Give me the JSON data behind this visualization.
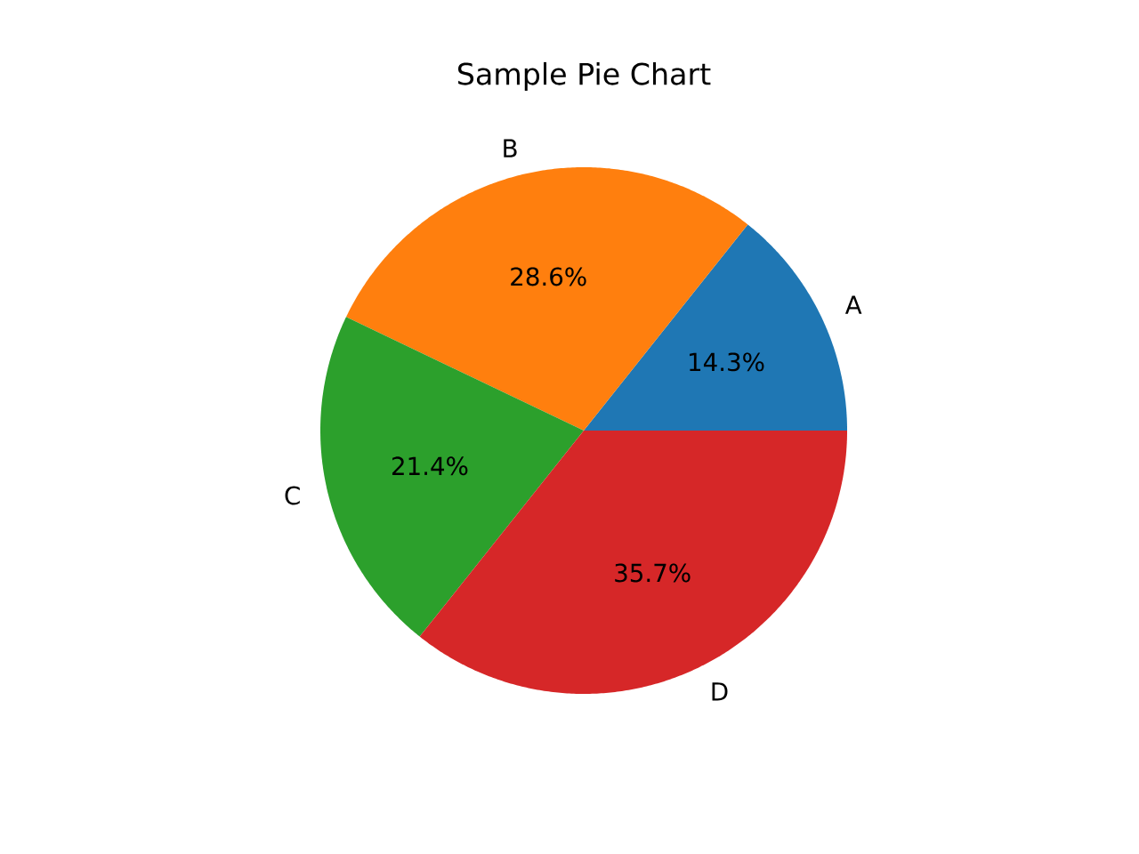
{
  "chart_data": {
    "type": "pie",
    "title": "Sample Pie Chart",
    "categories": [
      "A",
      "B",
      "C",
      "D"
    ],
    "values": [
      14.3,
      28.6,
      21.4,
      35.7
    ],
    "colors": [
      "#1f77b4",
      "#ff7f0e",
      "#2ca02c",
      "#d62728"
    ],
    "value_labels": [
      "14.3%",
      "28.6%",
      "21.4%",
      "35.7%"
    ]
  }
}
